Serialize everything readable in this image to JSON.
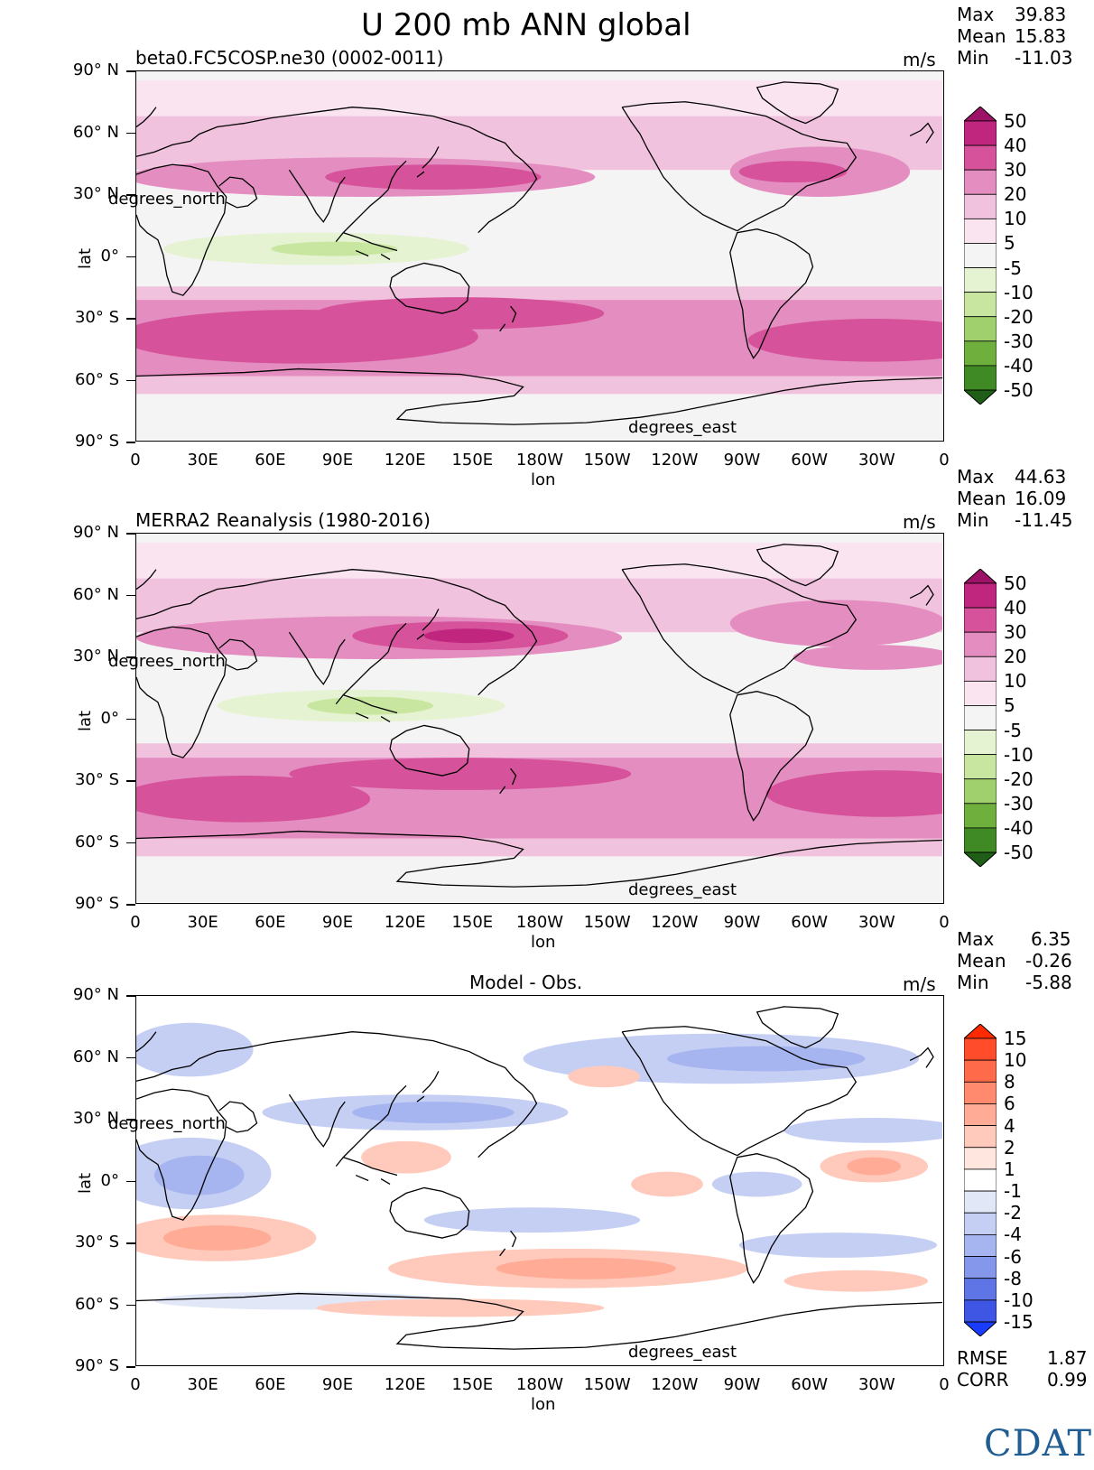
{
  "title": "U 200 mb ANN global",
  "units": "m/s",
  "panels": [
    {
      "subtitle": "beta0.FC5COSP.ne30 (0002-0011)",
      "stats": {
        "max_label": "Max",
        "max": "39.83",
        "mean_label": "Mean",
        "mean": "15.83",
        "min_label": "Min",
        "min": "-11.03"
      }
    },
    {
      "subtitle": "MERRA2 Reanalysis (1980-2016)",
      "stats": {
        "max_label": "Max",
        "max": "44.63",
        "mean_label": "Mean",
        "mean": "16.09",
        "min_label": "Min",
        "min": "-11.45"
      }
    },
    {
      "subtitle": "Model - Obs.",
      "stats": {
        "max_label": "Max",
        "max": "6.35",
        "mean_label": "Mean",
        "mean": "-0.26",
        "min_label": "Min",
        "min": "-5.88"
      }
    }
  ],
  "axis": {
    "lat_ticks": [
      "90° N",
      "60° N",
      "30° N",
      "0°",
      "30° S",
      "60° S",
      "90° S"
    ],
    "lon_ticks": [
      "0",
      "30E",
      "60E",
      "90E",
      "120E",
      "150E",
      "180W",
      "150W",
      "120W",
      "90W",
      "60W",
      "30W",
      "0"
    ],
    "xlabel": "lon",
    "ylabel": "lat",
    "lat_overlay": "degrees_north",
    "lon_overlay": "degrees_east"
  },
  "colorbars": {
    "field": {
      "labels": [
        "50",
        "40",
        "30",
        "20",
        "10",
        "5",
        "-5",
        "-10",
        "-20",
        "-30",
        "-40",
        "-50"
      ],
      "colors": [
        "#9c1266",
        "#c0267e",
        "#d6529b",
        "#e48dc0",
        "#f1c2de",
        "#fae4f0",
        "#f4f4f4",
        "#e6f3d2",
        "#c8e6a0",
        "#9fd06d",
        "#6faf3e",
        "#3f8a25",
        "#1f5e16"
      ]
    },
    "diff": {
      "labels": [
        "15",
        "10",
        "8",
        "6",
        "4",
        "2",
        "1",
        "-1",
        "-2",
        "-4",
        "-6",
        "-8",
        "-10",
        "-15"
      ],
      "colors": [
        "#ff2a00",
        "#ff4d2b",
        "#ff6a4a",
        "#ff8a6e",
        "#ffab96",
        "#ffcabc",
        "#ffe6de",
        "#ffffff",
        "#e2e7f8",
        "#c5cff4",
        "#a6b4ef",
        "#8597ea",
        "#5f74e5",
        "#3f55e3",
        "#1a3cff"
      ]
    }
  },
  "footer": {
    "rmse_label": "RMSE",
    "rmse": "1.87",
    "corr_label": "CORR",
    "corr": "0.99"
  },
  "logo": "CDAT",
  "chart_data": [
    {
      "type": "heatmap",
      "title": "U 200 mb ANN global",
      "subtitle": "beta0.FC5COSP.ne30 (0002-0011)",
      "xlabel": "lon",
      "ylabel": "lat",
      "xlim": [
        0,
        360
      ],
      "ylim": [
        -90,
        90
      ],
      "units": "m/s",
      "max": 39.83,
      "mean": 15.83,
      "min": -11.03,
      "levels": [
        -50,
        -40,
        -30,
        -20,
        -10,
        -5,
        5,
        10,
        20,
        30,
        40,
        50
      ]
    },
    {
      "type": "heatmap",
      "subtitle": "MERRA2 Reanalysis (1980-2016)",
      "xlabel": "lon",
      "ylabel": "lat",
      "xlim": [
        0,
        360
      ],
      "ylim": [
        -90,
        90
      ],
      "units": "m/s",
      "max": 44.63,
      "mean": 16.09,
      "min": -11.45,
      "levels": [
        -50,
        -40,
        -30,
        -20,
        -10,
        -5,
        5,
        10,
        20,
        30,
        40,
        50
      ]
    },
    {
      "type": "heatmap",
      "subtitle": "Model - Obs.",
      "xlabel": "lon",
      "ylabel": "lat",
      "xlim": [
        0,
        360
      ],
      "ylim": [
        -90,
        90
      ],
      "units": "m/s",
      "max": 6.35,
      "mean": -0.26,
      "min": -5.88,
      "rmse": 1.87,
      "corr": 0.99,
      "levels": [
        -15,
        -10,
        -8,
        -6,
        -4,
        -2,
        -1,
        1,
        2,
        4,
        6,
        8,
        10,
        15
      ]
    }
  ]
}
